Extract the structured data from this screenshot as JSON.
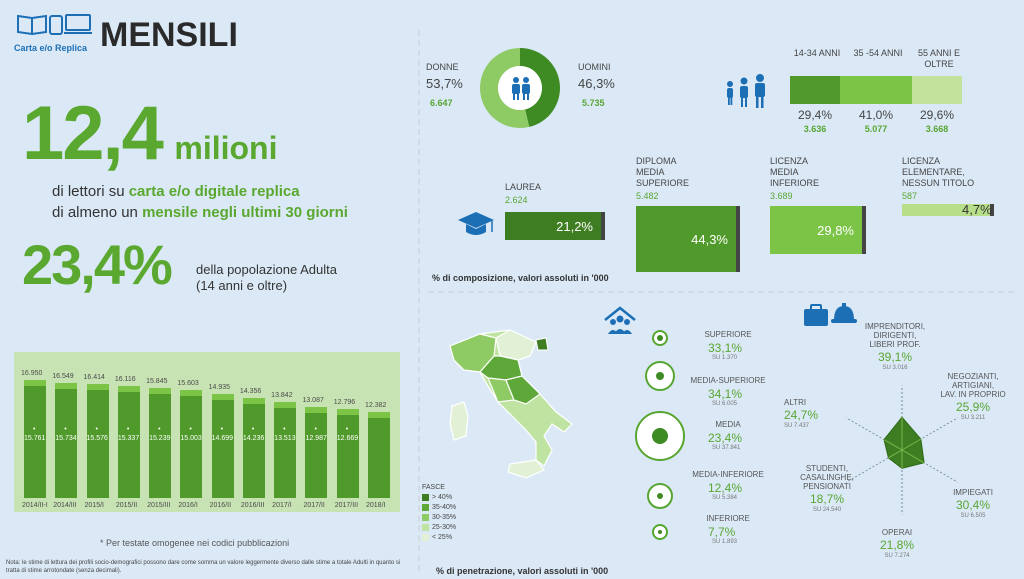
{
  "brand": {
    "logo_label": "Carta e/o Replica",
    "title": "MENSILI"
  },
  "headline": {
    "big_number": "12,4",
    "big_unit": "milioni",
    "line1_prefix": "di lettori su ",
    "line1_highlight": "carta e/o digitale replica",
    "line2_prefix": "di almeno un ",
    "line2_highlight": "mensile negli ultimi 30 giorni"
  },
  "population": {
    "pct": "23,4%",
    "line1": "della popolazione Adulta",
    "line2": "(14 anni e oltre)"
  },
  "chart_data": {
    "type": "bar",
    "categories": [
      "2014/II-I",
      "2014/III",
      "2015/I",
      "2015/II",
      "2015/III",
      "2016/I",
      "2016/II",
      "2016/III",
      "2017/I",
      "2017/II",
      "2017/III",
      "2018/I"
    ],
    "series": [
      {
        "values": [
          16950,
          16549,
          16414,
          16116,
          15845,
          15603,
          14935,
          14356,
          13842,
          13087,
          12796,
          12382
        ]
      },
      {
        "values": [
          15761,
          15734,
          15576,
          15337,
          15239,
          15003,
          14699,
          14236,
          13513,
          12987,
          12669,
          null
        ]
      }
    ],
    "top_labels": [
      "16.950",
      "16.549",
      "16.414",
      "16.116",
      "15.845",
      "15.603",
      "14.935",
      "14.356",
      "13.842",
      "13.087",
      "12.796",
      "12.382"
    ],
    "inner_labels": [
      "15.761",
      "15.734",
      "15.576",
      "15.337",
      "15.239",
      "15.003",
      "14.699",
      "14.236",
      "13.513",
      "12.987",
      "12.669",
      ""
    ]
  },
  "chart_footnote": "* Per testate omogenee nei codici pubblicazioni",
  "bottom_note": "Nota: le stime di lettura dei profili socio-demografici possono dare come somma un valore leggermente diverso dalle stime a totale Adulti in quanto si tratta di stime arrotondate (senza decimali).",
  "gender": {
    "female_label": "DONNE",
    "female_pct": "53,7%",
    "female_abs": "6.647",
    "male_label": "UOMINI",
    "male_pct": "46,3%",
    "male_abs": "5.735",
    "female_share": 0.537
  },
  "age": [
    {
      "label": "14-34 ANNI",
      "pct": "29,4%",
      "abs": "3.636",
      "color": "#4f9a2a"
    },
    {
      "label": "35 -54 ANNI",
      "pct": "41,0%",
      "abs": "5.077",
      "color": "#7cc445"
    },
    {
      "label": "55 ANNI E OLTRE",
      "pct": "29,6%",
      "abs": "3.668",
      "color": "#c3e39c"
    }
  ],
  "education": [
    {
      "title1": "LAUREA",
      "title2": "",
      "title3": "",
      "abs": "2.624",
      "pct": "21,2%",
      "color": "#3e7d22"
    },
    {
      "title1": "DIPLOMA",
      "title2": "MEDIA",
      "title3": "SUPERIORE",
      "abs": "5.482",
      "pct": "44,3%",
      "color": "#4f9a2a"
    },
    {
      "title1": "LICENZA",
      "title2": "MEDIA",
      "title3": "INFERIORE",
      "abs": "3.689",
      "pct": "29,8%",
      "color": "#7cc445"
    },
    {
      "title1": "LICENZA",
      "title2": "ELEMENTARE,",
      "title3": "NESSUN TITOLO",
      "abs": "587",
      "pct": "4,7%",
      "color": "#b7df8a"
    }
  ],
  "composition_caption": "% di composizione, valori assoluti in '000",
  "penetration_caption": "% di penetrazione, valori assoluti in '000",
  "fasce": {
    "title": "FASCE",
    "items": [
      "> 40%",
      "35-40%",
      "30-35%",
      "25-30%",
      "< 25%"
    ],
    "colors": [
      "#3e7d22",
      "#5ea83a",
      "#8fcb64",
      "#bfe3a0",
      "#e2f1d5"
    ]
  },
  "education_penetration": [
    {
      "label": "SUPERIORE",
      "pct": "33,1%",
      "abs": "SU 1.370"
    },
    {
      "label": "MEDIA-SUPERIORE",
      "pct": "34,1%",
      "abs": "SU 6.005"
    },
    {
      "label": "MEDIA",
      "pct": "23,4%",
      "abs": "SU 37.841"
    },
    {
      "label": "MEDIA-INFERIORE",
      "pct": "12,4%",
      "abs": "SU 5.384"
    },
    {
      "label": "INFERIORE",
      "pct": "7,7%",
      "abs": "SU 1.893"
    }
  ],
  "professions": {
    "imprenditori": {
      "label1": "IMPRENDITORI,",
      "label2": "DIRIGENTI,",
      "label3": "LIBERI PROF.",
      "pct": "39,1%",
      "abs": "SU 3.016"
    },
    "negozianti": {
      "label1": "NEGOZIANTI,",
      "label2": "ARTIGIANI,",
      "label3": "LAV. IN PROPRIO",
      "pct": "25,9%",
      "abs": "SU 3.211"
    },
    "impiegati": {
      "label1": "IMPIEGATI",
      "pct": "30,4%",
      "abs": "SU 6.505"
    },
    "operai": {
      "label1": "OPERAI",
      "pct": "21,8%",
      "abs": "SU 7.274"
    },
    "studenti": {
      "label1": "STUDENTI,",
      "label2": "CASALINGHE,",
      "label3": "PENSIONATI",
      "pct": "18,7%",
      "abs": "SU 24.540"
    },
    "altri": {
      "label1": "ALTRI",
      "pct": "24,7%",
      "abs": "SU 7.437"
    }
  }
}
